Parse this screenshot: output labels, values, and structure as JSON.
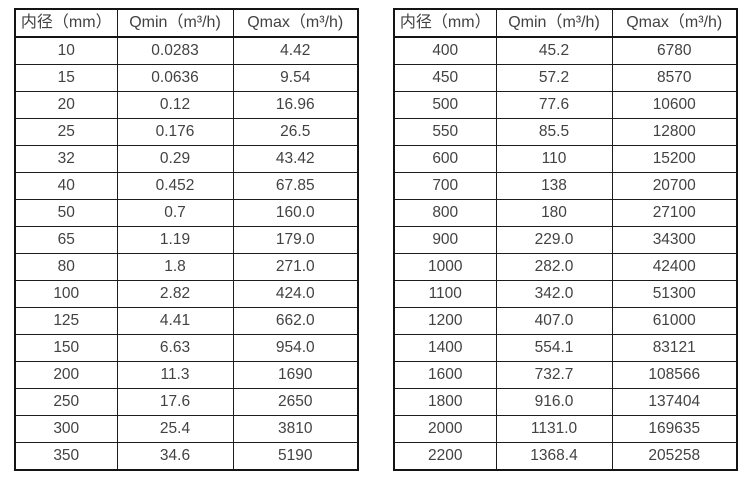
{
  "tables": [
    {
      "name": "flow-spec-table-small-diameters",
      "headers": [
        "内径（mm）",
        "Qmin（m³/h)",
        "Qmax（m³/h)"
      ],
      "rows": [
        [
          "10",
          "0.0283",
          "4.42"
        ],
        [
          "15",
          "0.0636",
          "9.54"
        ],
        [
          "20",
          "0.12",
          "16.96"
        ],
        [
          "25",
          "0.176",
          "26.5"
        ],
        [
          "32",
          "0.29",
          "43.42"
        ],
        [
          "40",
          "0.452",
          "67.85"
        ],
        [
          "50",
          "0.7",
          "160.0"
        ],
        [
          "65",
          "1.19",
          "179.0"
        ],
        [
          "80",
          "1.8",
          "271.0"
        ],
        [
          "100",
          "2.82",
          "424.0"
        ],
        [
          "125",
          "4.41",
          "662.0"
        ],
        [
          "150",
          "6.63",
          "954.0"
        ],
        [
          "200",
          "11.3",
          "1690"
        ],
        [
          "250",
          "17.6",
          "2650"
        ],
        [
          "300",
          "25.4",
          "3810"
        ],
        [
          "350",
          "34.6",
          "5190"
        ]
      ]
    },
    {
      "name": "flow-spec-table-large-diameters",
      "headers": [
        "内径（mm）",
        "Qmin（m³/h)",
        "Qmax（m³/h)"
      ],
      "rows": [
        [
          "400",
          "45.2",
          "6780"
        ],
        [
          "450",
          "57.2",
          "8570"
        ],
        [
          "500",
          "77.6",
          "10600"
        ],
        [
          "550",
          "85.5",
          "12800"
        ],
        [
          "600",
          "110",
          "15200"
        ],
        [
          "700",
          "138",
          "20700"
        ],
        [
          "800",
          "180",
          "27100"
        ],
        [
          "900",
          "229.0",
          "34300"
        ],
        [
          "1000",
          "282.0",
          "42400"
        ],
        [
          "1100",
          "342.0",
          "51300"
        ],
        [
          "1200",
          "407.0",
          "61000"
        ],
        [
          "1400",
          "554.1",
          "83121"
        ],
        [
          "1600",
          "732.7",
          "108566"
        ],
        [
          "1800",
          "916.0",
          "137404"
        ],
        [
          "2000",
          "1131.0",
          "169635"
        ],
        [
          "2200",
          "1368.4",
          "205258"
        ]
      ]
    }
  ],
  "colors": {
    "text": "#424242",
    "grid_line": "#1c1c1c",
    "outer_border": "#141414",
    "background": "#ffffff"
  }
}
